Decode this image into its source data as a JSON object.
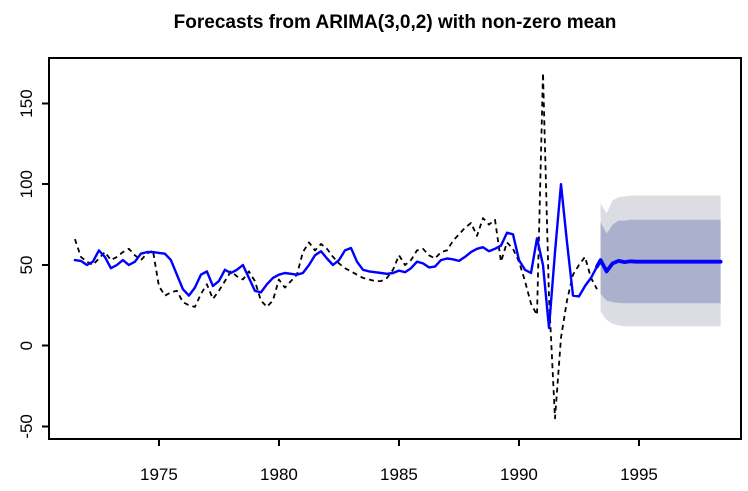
{
  "chart_data": {
    "type": "line",
    "title": "Forecasts from ARIMA(3,0,2) with non-zero mean",
    "xlabel": "",
    "ylabel": "",
    "x_ticks": [
      1975,
      1980,
      1985,
      1990,
      1995
    ],
    "y_ticks": [
      -50,
      0,
      50,
      100,
      150
    ],
    "xlim": [
      1970.42,
      1999.25
    ],
    "ylim": [
      -57.8,
      178.2
    ],
    "grid": false,
    "legend_position": "none",
    "series": [
      {
        "name": "observed-data",
        "style": "dashed",
        "color": "#000000",
        "x_start": 1971.5,
        "x_step": 0.25,
        "values": [
          66,
          55,
          52,
          50,
          54,
          58,
          53,
          55,
          58,
          60,
          56,
          53,
          57,
          59,
          37,
          31,
          33,
          34,
          27,
          25,
          24,
          32,
          38,
          29,
          34,
          40,
          46,
          43,
          41,
          46,
          40,
          28,
          24,
          28,
          41,
          36,
          40,
          44,
          58,
          64,
          59,
          63,
          60,
          55,
          51,
          48,
          46,
          44,
          42,
          41,
          40,
          40,
          42,
          47,
          56,
          50,
          53,
          59,
          60,
          56,
          54,
          58,
          59,
          65,
          69,
          73,
          76,
          68,
          79,
          75,
          78,
          52,
          64,
          60,
          52,
          40,
          26,
          19,
          169,
          30,
          -45,
          5,
          28,
          44,
          50,
          55,
          42,
          35
        ]
      },
      {
        "name": "fitted-values",
        "style": "solid",
        "color": "#0000ff",
        "x_start": 1971.5,
        "x_step": 0.25,
        "values": [
          53,
          52.5,
          50,
          52,
          59,
          55,
          48,
          50,
          53,
          50,
          52,
          57,
          58,
          58,
          57.5,
          57,
          53,
          44,
          35,
          31,
          36,
          44,
          46,
          37,
          40,
          47,
          45,
          47,
          50,
          42,
          34,
          33,
          38,
          42,
          44,
          45,
          44.5,
          44,
          45,
          50,
          56,
          58.5,
          54,
          50,
          53,
          59,
          60.5,
          52,
          47,
          46,
          45.5,
          45,
          44.5,
          45,
          46.5,
          45.5,
          48,
          52,
          51,
          48.5,
          49,
          53,
          54,
          53.5,
          52.5,
          55,
          58,
          60,
          61,
          58.5,
          60,
          62,
          70,
          69,
          53,
          47,
          45,
          66.5,
          50,
          11,
          58,
          100,
          64,
          31,
          30.5,
          37,
          42,
          49
        ]
      }
    ],
    "forecast": {
      "x_start": 1993.4,
      "x_step": 0.25,
      "mean_color": "#0000ff",
      "band80_color": "#abb1cd",
      "band95_color": "#dcdce3",
      "mean": [
        53,
        46,
        51,
        52.5,
        51.8,
        52.3,
        52,
        52,
        52,
        52,
        52,
        52,
        52,
        52,
        52,
        52,
        52,
        52,
        52,
        52,
        52
      ],
      "hi80": [
        76.5,
        69.5,
        75,
        77.5,
        77.5,
        78,
        78,
        78,
        78,
        78,
        78,
        78,
        78,
        78,
        78,
        78,
        78,
        78,
        78,
        78,
        78
      ],
      "lo80": [
        32,
        28,
        27,
        26.5,
        26.3,
        26.3,
        26.3,
        26.3,
        26.3,
        26.3,
        26.3,
        26.3,
        26.3,
        26.3,
        26.3,
        26.3,
        26.3,
        26.3,
        26.3,
        26.3,
        26.3
      ],
      "hi95": [
        88,
        82,
        90,
        92,
        92.5,
        93,
        93,
        93,
        93,
        93,
        93,
        93,
        93,
        93,
        93,
        93,
        93,
        93,
        93,
        93,
        93
      ],
      "lo95": [
        21,
        16,
        13.5,
        12.5,
        12,
        12,
        12,
        12,
        12,
        12,
        12,
        12,
        12,
        12,
        12,
        12,
        12,
        12,
        12,
        12,
        12
      ]
    },
    "colors": {
      "axis": "#000000",
      "background": "#ffffff",
      "title": "#000000"
    }
  }
}
